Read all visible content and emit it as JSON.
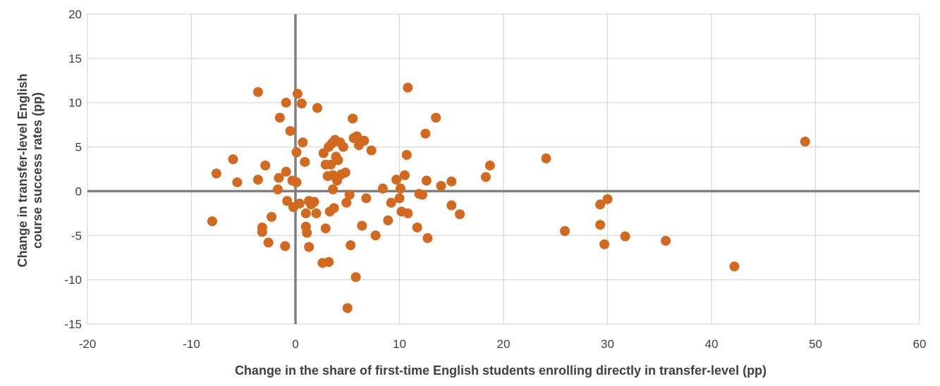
{
  "chart_data": {
    "type": "scatter",
    "title": "",
    "xlabel": "Change in the share of first-time English students enrolling directly in transfer-level (pp)",
    "ylabel_line1": "Change in transfer-level English",
    "ylabel_line2": "course success rates (pp)",
    "xlim": [
      -20,
      60
    ],
    "ylim": [
      -15,
      20
    ],
    "x_ticks": [
      -20,
      -10,
      0,
      10,
      20,
      30,
      40,
      50,
      60
    ],
    "y_ticks": [
      -15,
      -10,
      -5,
      0,
      5,
      10,
      15,
      20
    ],
    "grid": true,
    "legend": "none",
    "colors": {
      "points": "#D2691E",
      "grid": "#D9D9D9",
      "zero_lines": "#7F7F7F"
    },
    "series": [
      {
        "points": [
          [
            -8,
            -3.4
          ],
          [
            -7.6,
            2.0
          ],
          [
            -6,
            3.6
          ],
          [
            -5.6,
            1.0
          ],
          [
            -3.6,
            11.2
          ],
          [
            -3.6,
            1.3
          ],
          [
            -3.2,
            -4.1
          ],
          [
            -3.2,
            -4.6
          ],
          [
            -2.9,
            2.9
          ],
          [
            -2.6,
            -5.8
          ],
          [
            -2.3,
            -2.9
          ],
          [
            -1.7,
            0.2
          ],
          [
            -1.6,
            1.5
          ],
          [
            -1.5,
            8.3
          ],
          [
            -1.0,
            -6.2
          ],
          [
            -0.9,
            10.0
          ],
          [
            -0.9,
            2.2
          ],
          [
            -0.8,
            -1.1
          ],
          [
            -0.5,
            6.8
          ],
          [
            -0.3,
            1.2
          ],
          [
            -0.2,
            -1.8
          ],
          [
            0.1,
            1.0
          ],
          [
            0.1,
            4.4
          ],
          [
            0.2,
            11.0
          ],
          [
            0.4,
            -1.4
          ],
          [
            0.6,
            9.9
          ],
          [
            0.7,
            5.5
          ],
          [
            0.9,
            3.3
          ],
          [
            1.0,
            -2.5
          ],
          [
            1.0,
            -4.0
          ],
          [
            1.1,
            -4.7
          ],
          [
            1.3,
            -1.1
          ],
          [
            1.3,
            -6.3
          ],
          [
            1.5,
            -1.5
          ],
          [
            1.8,
            -1.2
          ],
          [
            2.0,
            -2.5
          ],
          [
            2.1,
            9.4
          ],
          [
            2.6,
            -8.1
          ],
          [
            2.7,
            4.3
          ],
          [
            2.9,
            3.0
          ],
          [
            2.9,
            -4.2
          ],
          [
            3.1,
            1.7
          ],
          [
            3.2,
            -8.0
          ],
          [
            3.2,
            5.0
          ],
          [
            3.3,
            -2.3
          ],
          [
            3.4,
            3.0
          ],
          [
            3.5,
            5.4
          ],
          [
            3.6,
            0.2
          ],
          [
            3.6,
            1.8
          ],
          [
            3.7,
            -1.9
          ],
          [
            3.8,
            5.8
          ],
          [
            3.9,
            3.9
          ],
          [
            4.0,
            1.2
          ],
          [
            4.1,
            3.5
          ],
          [
            4.3,
            5.5
          ],
          [
            4.4,
            1.9
          ],
          [
            4.6,
            5.0
          ],
          [
            4.8,
            2.1
          ],
          [
            4.9,
            -1.3
          ],
          [
            5.0,
            -13.2
          ],
          [
            5.2,
            -0.4
          ],
          [
            5.3,
            -6.1
          ],
          [
            5.5,
            8.2
          ],
          [
            5.6,
            6.0
          ],
          [
            5.8,
            -9.7
          ],
          [
            5.9,
            6.2
          ],
          [
            6.1,
            5.2
          ],
          [
            6.4,
            -3.9
          ],
          [
            6.6,
            5.7
          ],
          [
            6.8,
            -0.8
          ],
          [
            7.3,
            4.6
          ],
          [
            7.7,
            -5.0
          ],
          [
            8.4,
            0.3
          ],
          [
            8.9,
            -3.3
          ],
          [
            9.2,
            -1.3
          ],
          [
            9.7,
            1.3
          ],
          [
            10.0,
            -0.8
          ],
          [
            10.1,
            0.3
          ],
          [
            10.2,
            -2.3
          ],
          [
            10.5,
            1.8
          ],
          [
            10.7,
            4.1
          ],
          [
            10.8,
            11.7
          ],
          [
            10.8,
            -2.5
          ],
          [
            11.7,
            -4.1
          ],
          [
            11.9,
            -0.3
          ],
          [
            12.2,
            -0.4
          ],
          [
            12.5,
            6.5
          ],
          [
            12.6,
            1.2
          ],
          [
            12.7,
            -5.3
          ],
          [
            13.5,
            8.3
          ],
          [
            14.0,
            0.6
          ],
          [
            15.0,
            1.1
          ],
          [
            15.0,
            -1.6
          ],
          [
            15.8,
            -2.6
          ],
          [
            18.3,
            1.6
          ],
          [
            18.7,
            2.9
          ],
          [
            24.1,
            3.7
          ],
          [
            25.9,
            -4.5
          ],
          [
            29.3,
            -1.5
          ],
          [
            29.3,
            -3.8
          ],
          [
            29.7,
            -6.0
          ],
          [
            30.0,
            -0.9
          ],
          [
            31.7,
            -5.1
          ],
          [
            35.6,
            -5.6
          ],
          [
            42.2,
            -8.5
          ],
          [
            49.0,
            5.6
          ]
        ]
      }
    ]
  }
}
